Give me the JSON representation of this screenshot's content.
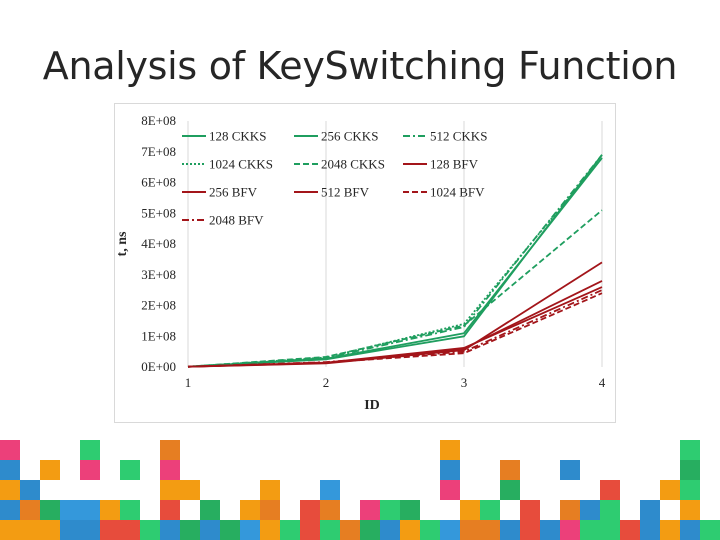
{
  "slide": {
    "title": "Analysis of KeySwitching Function"
  },
  "colors": {
    "ckks": "#1f9e5f",
    "bfv": "#a3151a",
    "mosaic": [
      "#2e8bcc",
      "#e74c3c",
      "#2ecc71",
      "#f39c12",
      "#ec407a",
      "#27ae60",
      "#e67e22",
      "#3498db"
    ]
  },
  "chart_data": {
    "type": "line",
    "title": "",
    "xlabel": "ID",
    "ylabel": "t, ns",
    "x": [
      1,
      2,
      3,
      4
    ],
    "x_tick_labels": [
      "1",
      "2",
      "3",
      "4"
    ],
    "y_tick_labels": [
      "0E+00",
      "1E+08",
      "2E+08",
      "3E+08",
      "4E+08",
      "5E+08",
      "6E+08",
      "7E+08",
      "8E+08"
    ],
    "ylim": [
      0,
      800000000
    ],
    "grid": "vertical",
    "legend_position": "top-left",
    "series": [
      {
        "name": "128 CKKS",
        "values": [
          1000000,
          25000000,
          100000000,
          690000000
        ],
        "color": "#1f9e5f",
        "dash": "solid"
      },
      {
        "name": "256 CKKS",
        "values": [
          1000000,
          27000000,
          110000000,
          680000000
        ],
        "color": "#1f9e5f",
        "dash": "solid"
      },
      {
        "name": "512 CKKS",
        "values": [
          1000000,
          29000000,
          130000000,
          690000000
        ],
        "color": "#1f9e5f",
        "dash": "dashdot"
      },
      {
        "name": "1024 CKKS",
        "values": [
          1000000,
          31000000,
          140000000,
          680000000
        ],
        "color": "#1f9e5f",
        "dash": "dot"
      },
      {
        "name": "2048 CKKS",
        "values": [
          1000000,
          33000000,
          135000000,
          510000000
        ],
        "color": "#1f9e5f",
        "dash": "dash"
      },
      {
        "name": "128 BFV",
        "values": [
          1000000,
          12000000,
          55000000,
          340000000
        ],
        "color": "#a3151a",
        "dash": "solid"
      },
      {
        "name": "256 BFV",
        "values": [
          1000000,
          13000000,
          60000000,
          280000000
        ],
        "color": "#a3151a",
        "dash": "solid"
      },
      {
        "name": "512 BFV",
        "values": [
          1000000,
          14000000,
          62000000,
          260000000
        ],
        "color": "#a3151a",
        "dash": "solid"
      },
      {
        "name": "1024 BFV",
        "values": [
          1000000,
          15000000,
          45000000,
          240000000
        ],
        "color": "#a3151a",
        "dash": "dash"
      },
      {
        "name": "2048 BFV",
        "values": [
          1000000,
          16000000,
          50000000,
          250000000
        ],
        "color": "#a3151a",
        "dash": "dashdot"
      }
    ]
  }
}
